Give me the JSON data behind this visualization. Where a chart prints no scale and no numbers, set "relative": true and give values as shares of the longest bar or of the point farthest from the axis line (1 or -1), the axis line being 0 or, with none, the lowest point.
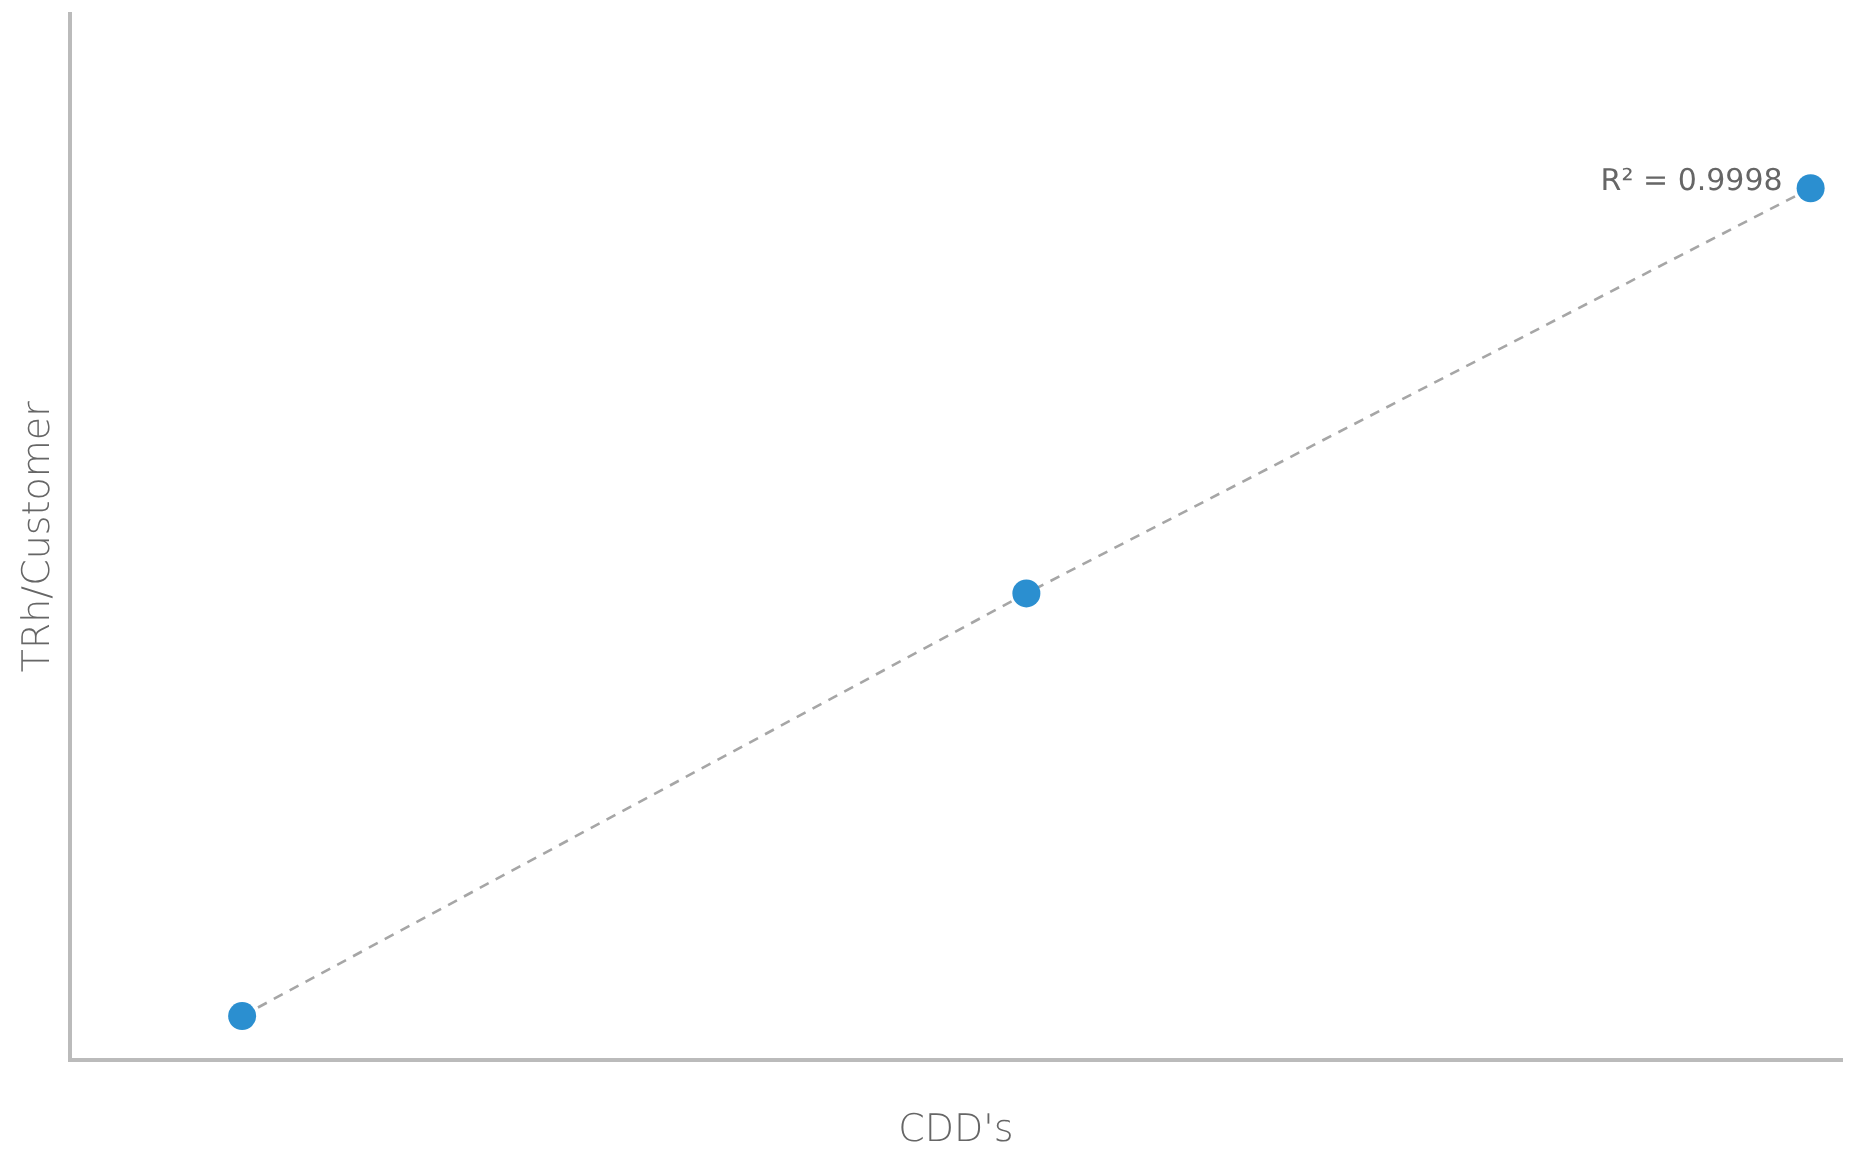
{
  "chart_data": {
    "type": "line",
    "xlabel": "CDD's",
    "ylabel": "TRh/Customer",
    "relative": true,
    "grid": false,
    "legend": false,
    "marker": "circle",
    "line_style": "dashed",
    "categories": [
      null,
      null,
      null
    ],
    "series": [
      {
        "color": "#a6a6a6",
        "colors": [
          "#2b8fd0",
          "#2b8fd0",
          "#2b8fd0"
        ],
        "values": [
          0.05,
          0.535,
          1
        ]
      }
    ],
    "annotations": [
      "R² = 0.9998"
    ]
  }
}
